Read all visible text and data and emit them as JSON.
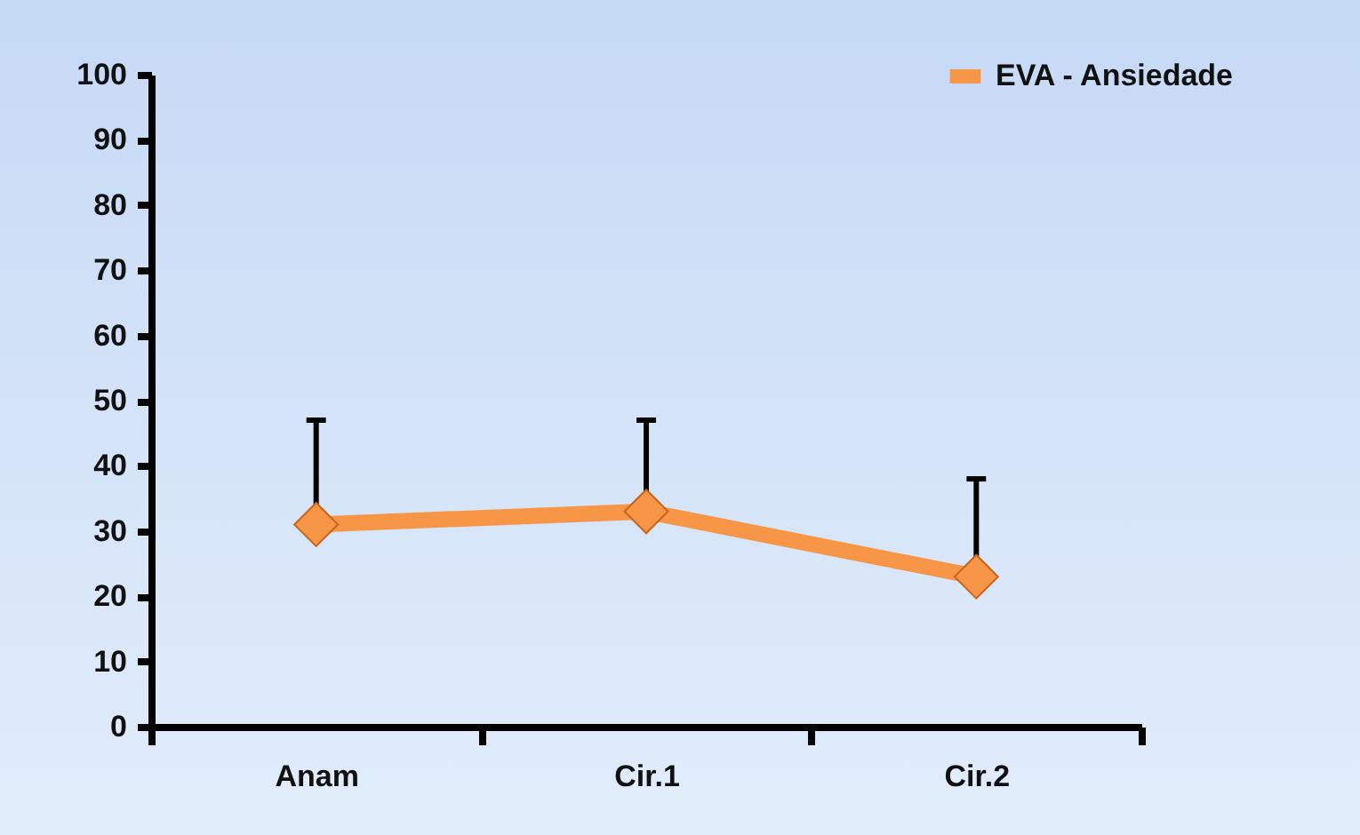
{
  "chart_data": {
    "type": "line",
    "categories": [
      "Anam",
      "Cir.1",
      "Cir.2"
    ],
    "series": [
      {
        "name": "EVA - Ansiedade",
        "color": "#f79646",
        "values": [
          31,
          33,
          23
        ],
        "errors": [
          [
            31,
            47
          ],
          [
            33,
            47
          ],
          [
            23,
            38
          ]
        ]
      }
    ],
    "ylim": [
      0,
      100
    ],
    "yticks": [
      0,
      10,
      20,
      30,
      40,
      50,
      60,
      70,
      80,
      90,
      100
    ],
    "legend": "top right",
    "marker": "diamond"
  }
}
